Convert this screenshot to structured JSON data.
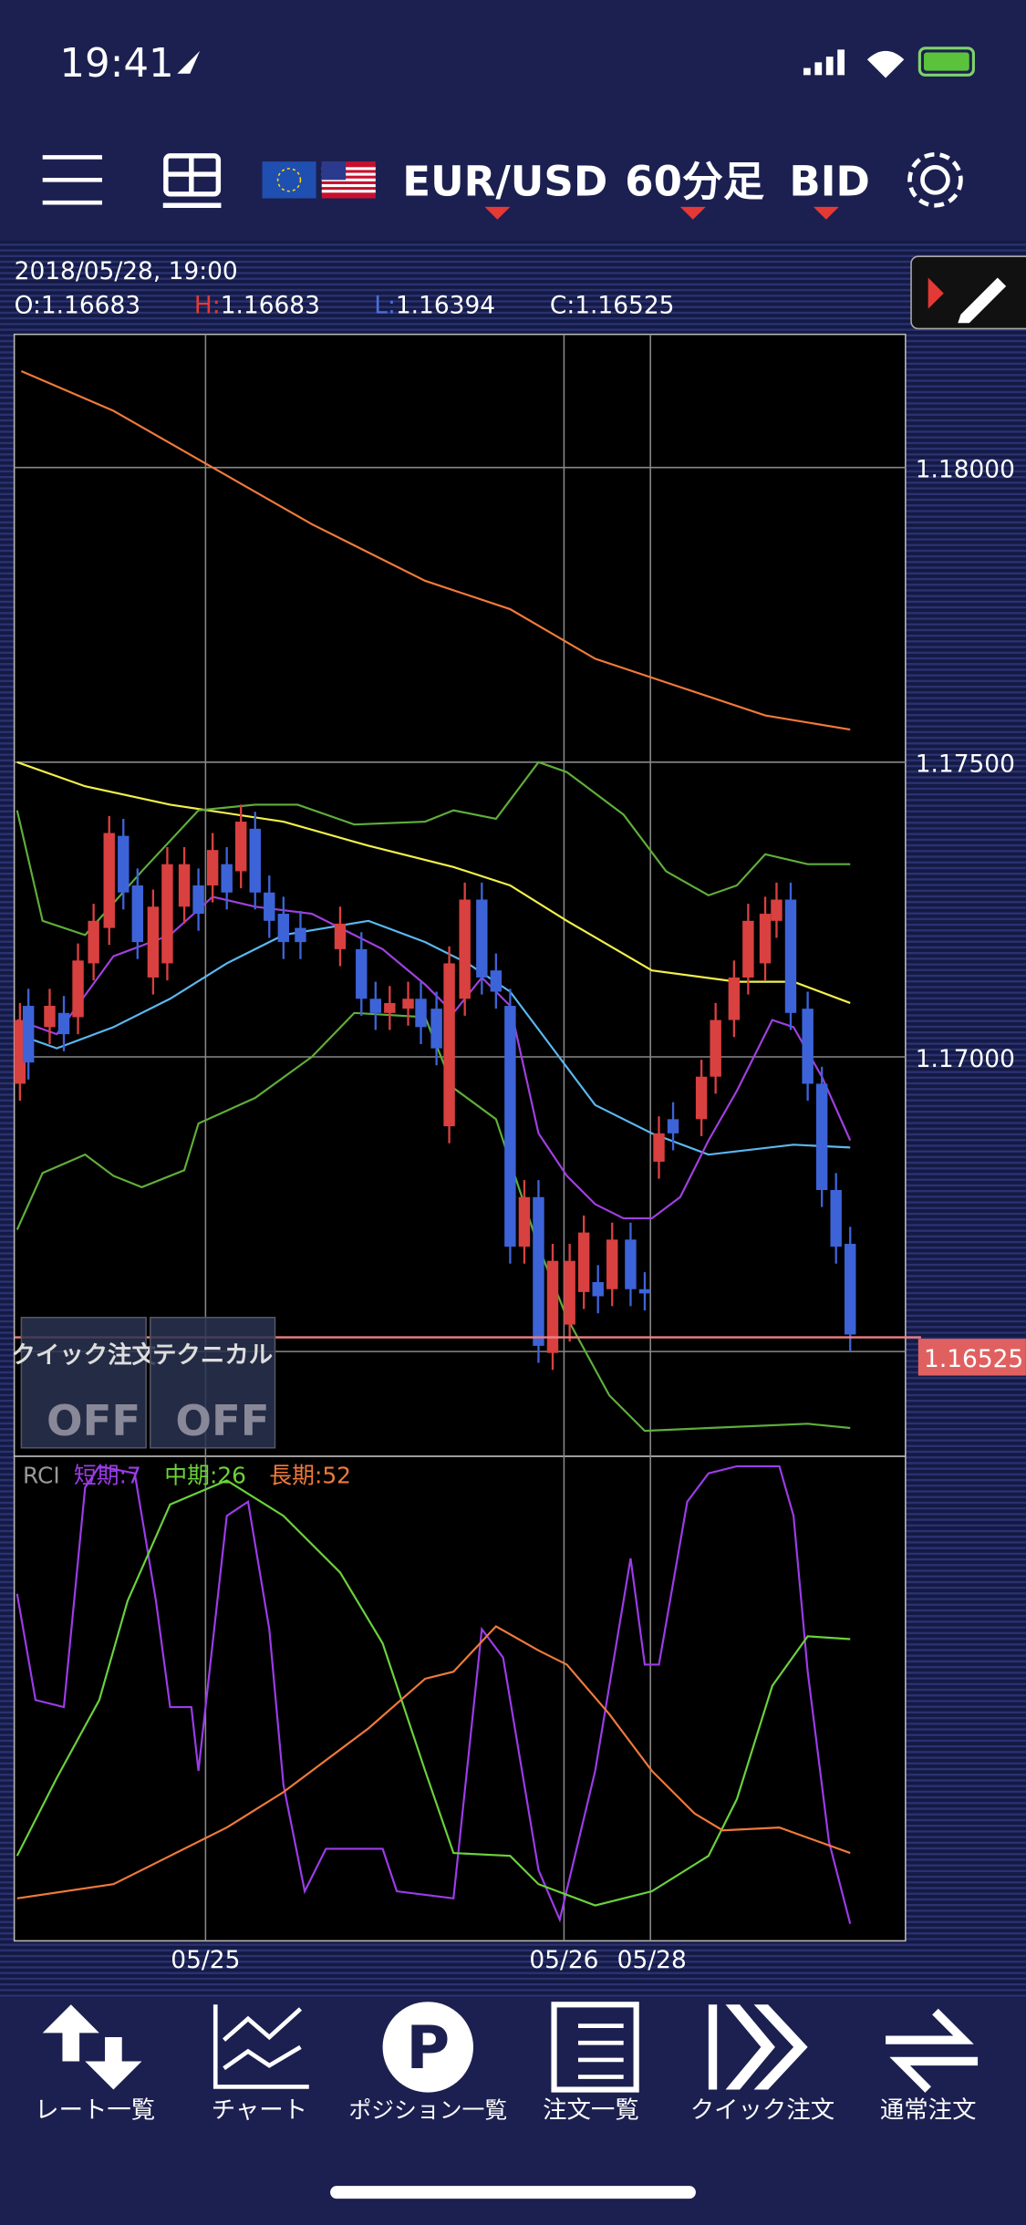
{
  "status_bar": {
    "time": "19:41"
  },
  "toolbar": {
    "pair": "EUR/USD",
    "timeframe": "60分足",
    "price_type": "BID"
  },
  "chart_info": {
    "datetime": "2018/05/28, 19:00",
    "open_label": "O:",
    "open": "1.16683",
    "high_label": "H:",
    "high": "1.16683",
    "low_label": "L:",
    "low": "1.16394",
    "close_label": "C:",
    "close": "1.16525"
  },
  "price_axis": [
    "1.18000",
    "1.17500",
    "1.17000"
  ],
  "current_price": "1.16525",
  "date_axis": [
    "05/25",
    "05/26",
    "05/28"
  ],
  "overlay_buttons": [
    {
      "label": "クイック注文",
      "state": "OFF"
    },
    {
      "label": "テクニカル",
      "state": "OFF"
    }
  ],
  "rci_legend": {
    "title": "RCI",
    "short": "短期:7",
    "mid": "中期:26",
    "long": "長期:52"
  },
  "tab_bar": [
    "レート一覧",
    "チャート",
    "ポジション一覧",
    "注文一覧",
    "クイック注文",
    "通常注文"
  ]
}
